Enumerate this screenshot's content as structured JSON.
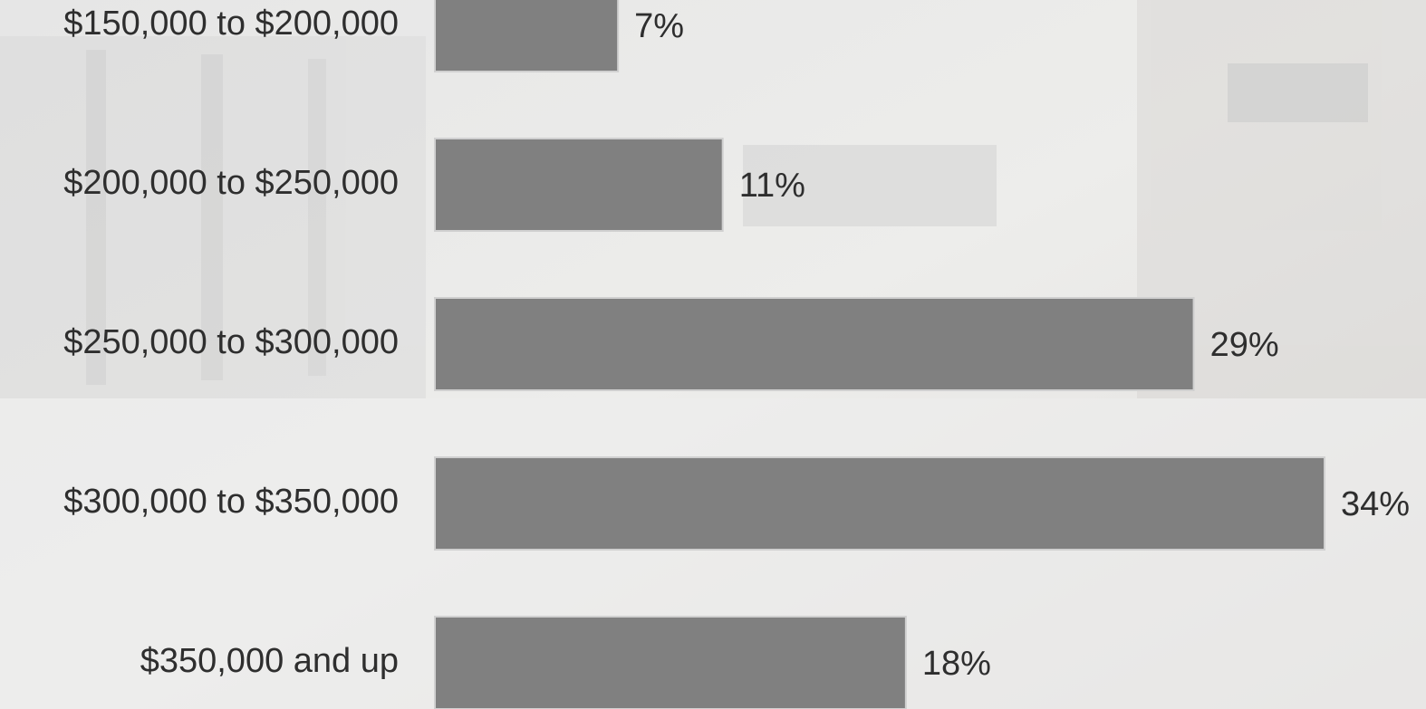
{
  "chart_data": {
    "type": "bar",
    "orientation": "horizontal",
    "categories": [
      "$150,000 to $200,000",
      "$200,000 to $250,000",
      "$250,000 to $300,000",
      "$300,000 to $350,000",
      "$350,000 and up"
    ],
    "values": [
      7,
      11,
      29,
      34,
      18
    ],
    "value_labels": [
      "7%",
      "11%",
      "29%",
      "34%",
      "18%"
    ],
    "color": "#808080"
  }
}
